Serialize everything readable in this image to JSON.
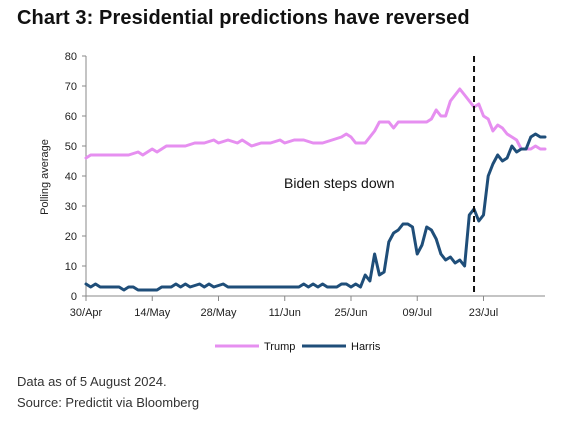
{
  "header": {
    "title": "Chart 3: Presidential predictions have reversed"
  },
  "footer": {
    "note": "Data as of 5 August 2024.",
    "source": "Source: Predictit via Bloomberg"
  },
  "colors": {
    "trump": "#e68ff0",
    "harris": "#1f4e79",
    "axis": "#888888",
    "marker": "#111111"
  },
  "chart_data": {
    "type": "line",
    "title": "Chart 3: Presidential predictions have reversed",
    "ylabel": "Polling average",
    "xlabel": "",
    "ylim": [
      0,
      80
    ],
    "yticks": [
      0,
      10,
      20,
      30,
      40,
      50,
      60,
      70,
      80
    ],
    "x_start": "2024-04-30",
    "x_end": "2024-08-05",
    "xticks": [
      {
        "date": "2024-04-30",
        "label": "30/Apr"
      },
      {
        "date": "2024-05-14",
        "label": "14/May"
      },
      {
        "date": "2024-05-28",
        "label": "28/May"
      },
      {
        "date": "2024-06-11",
        "label": "11/Jun"
      },
      {
        "date": "2024-06-25",
        "label": "25/Jun"
      },
      {
        "date": "2024-07-09",
        "label": "09/Jul"
      },
      {
        "date": "2024-07-23",
        "label": "23/Jul"
      }
    ],
    "grid": false,
    "legend": "bottom-center",
    "annotations": [
      {
        "type": "vline",
        "date": "2024-07-21",
        "text": "Biden steps down"
      }
    ],
    "series": [
      {
        "name": "Trump",
        "color": "#e68ff0",
        "points": [
          [
            "2024-04-30",
            46
          ],
          [
            "2024-05-01",
            47
          ],
          [
            "2024-05-03",
            47
          ],
          [
            "2024-05-05",
            47
          ],
          [
            "2024-05-07",
            47
          ],
          [
            "2024-05-09",
            47
          ],
          [
            "2024-05-11",
            48
          ],
          [
            "2024-05-12",
            47
          ],
          [
            "2024-05-14",
            49
          ],
          [
            "2024-05-15",
            48
          ],
          [
            "2024-05-17",
            50
          ],
          [
            "2024-05-19",
            50
          ],
          [
            "2024-05-21",
            50
          ],
          [
            "2024-05-23",
            51
          ],
          [
            "2024-05-25",
            51
          ],
          [
            "2024-05-27",
            52
          ],
          [
            "2024-05-28",
            51
          ],
          [
            "2024-05-30",
            52
          ],
          [
            "2024-06-01",
            51
          ],
          [
            "2024-06-02",
            52
          ],
          [
            "2024-06-04",
            50
          ],
          [
            "2024-06-06",
            51
          ],
          [
            "2024-06-08",
            51
          ],
          [
            "2024-06-10",
            52
          ],
          [
            "2024-06-11",
            51
          ],
          [
            "2024-06-13",
            52
          ],
          [
            "2024-06-15",
            52
          ],
          [
            "2024-06-17",
            51
          ],
          [
            "2024-06-19",
            51
          ],
          [
            "2024-06-21",
            52
          ],
          [
            "2024-06-23",
            53
          ],
          [
            "2024-06-24",
            54
          ],
          [
            "2024-06-25",
            53
          ],
          [
            "2024-06-26",
            51
          ],
          [
            "2024-06-27",
            51
          ],
          [
            "2024-06-28",
            51
          ],
          [
            "2024-06-29",
            53
          ],
          [
            "2024-06-30",
            55
          ],
          [
            "2024-07-01",
            58
          ],
          [
            "2024-07-02",
            58
          ],
          [
            "2024-07-03",
            58
          ],
          [
            "2024-07-04",
            56
          ],
          [
            "2024-07-05",
            58
          ],
          [
            "2024-07-06",
            58
          ],
          [
            "2024-07-07",
            58
          ],
          [
            "2024-07-08",
            58
          ],
          [
            "2024-07-09",
            58
          ],
          [
            "2024-07-10",
            58
          ],
          [
            "2024-07-11",
            58
          ],
          [
            "2024-07-12",
            59
          ],
          [
            "2024-07-13",
            62
          ],
          [
            "2024-07-14",
            60
          ],
          [
            "2024-07-15",
            60
          ],
          [
            "2024-07-16",
            65
          ],
          [
            "2024-07-17",
            67
          ],
          [
            "2024-07-18",
            69
          ],
          [
            "2024-07-19",
            67
          ],
          [
            "2024-07-20",
            65
          ],
          [
            "2024-07-21",
            63
          ],
          [
            "2024-07-22",
            64
          ],
          [
            "2024-07-23",
            60
          ],
          [
            "2024-07-24",
            59
          ],
          [
            "2024-07-25",
            55
          ],
          [
            "2024-07-26",
            57
          ],
          [
            "2024-07-27",
            56
          ],
          [
            "2024-07-28",
            54
          ],
          [
            "2024-07-29",
            53
          ],
          [
            "2024-07-30",
            52
          ],
          [
            "2024-07-31",
            49
          ],
          [
            "2024-08-01",
            49
          ],
          [
            "2024-08-02",
            49
          ],
          [
            "2024-08-03",
            50
          ],
          [
            "2024-08-04",
            49
          ],
          [
            "2024-08-05",
            49
          ]
        ]
      },
      {
        "name": "Harris",
        "color": "#1f4e79",
        "points": [
          [
            "2024-04-30",
            4
          ],
          [
            "2024-05-01",
            3
          ],
          [
            "2024-05-02",
            4
          ],
          [
            "2024-05-03",
            3
          ],
          [
            "2024-05-05",
            3
          ],
          [
            "2024-05-07",
            3
          ],
          [
            "2024-05-08",
            2
          ],
          [
            "2024-05-09",
            3
          ],
          [
            "2024-05-10",
            3
          ],
          [
            "2024-05-11",
            2
          ],
          [
            "2024-05-13",
            2
          ],
          [
            "2024-05-15",
            2
          ],
          [
            "2024-05-16",
            3
          ],
          [
            "2024-05-18",
            3
          ],
          [
            "2024-05-19",
            4
          ],
          [
            "2024-05-20",
            3
          ],
          [
            "2024-05-21",
            4
          ],
          [
            "2024-05-22",
            3
          ],
          [
            "2024-05-24",
            4
          ],
          [
            "2024-05-25",
            3
          ],
          [
            "2024-05-26",
            4
          ],
          [
            "2024-05-27",
            3
          ],
          [
            "2024-05-29",
            4
          ],
          [
            "2024-05-30",
            3
          ],
          [
            "2024-06-01",
            3
          ],
          [
            "2024-06-03",
            3
          ],
          [
            "2024-06-05",
            3
          ],
          [
            "2024-06-07",
            3
          ],
          [
            "2024-06-09",
            3
          ],
          [
            "2024-06-11",
            3
          ],
          [
            "2024-06-13",
            3
          ],
          [
            "2024-06-14",
            3
          ],
          [
            "2024-06-15",
            4
          ],
          [
            "2024-06-16",
            3
          ],
          [
            "2024-06-17",
            4
          ],
          [
            "2024-06-18",
            3
          ],
          [
            "2024-06-19",
            4
          ],
          [
            "2024-06-20",
            3
          ],
          [
            "2024-06-22",
            3
          ],
          [
            "2024-06-23",
            4
          ],
          [
            "2024-06-24",
            4
          ],
          [
            "2024-06-25",
            3
          ],
          [
            "2024-06-26",
            4
          ],
          [
            "2024-06-27",
            3
          ],
          [
            "2024-06-28",
            7
          ],
          [
            "2024-06-29",
            5
          ],
          [
            "2024-06-30",
            14
          ],
          [
            "2024-07-01",
            7
          ],
          [
            "2024-07-02",
            8
          ],
          [
            "2024-07-03",
            18
          ],
          [
            "2024-07-04",
            21
          ],
          [
            "2024-07-05",
            22
          ],
          [
            "2024-07-06",
            24
          ],
          [
            "2024-07-07",
            24
          ],
          [
            "2024-07-08",
            23
          ],
          [
            "2024-07-09",
            14
          ],
          [
            "2024-07-10",
            17
          ],
          [
            "2024-07-11",
            23
          ],
          [
            "2024-07-12",
            22
          ],
          [
            "2024-07-13",
            19
          ],
          [
            "2024-07-14",
            14
          ],
          [
            "2024-07-15",
            12
          ],
          [
            "2024-07-16",
            13
          ],
          [
            "2024-07-17",
            11
          ],
          [
            "2024-07-18",
            12
          ],
          [
            "2024-07-19",
            10
          ],
          [
            "2024-07-20",
            27
          ],
          [
            "2024-07-21",
            29
          ],
          [
            "2024-07-22",
            25
          ],
          [
            "2024-07-23",
            27
          ],
          [
            "2024-07-24",
            40
          ],
          [
            "2024-07-25",
            44
          ],
          [
            "2024-07-26",
            47
          ],
          [
            "2024-07-27",
            45
          ],
          [
            "2024-07-28",
            46
          ],
          [
            "2024-07-29",
            50
          ],
          [
            "2024-07-30",
            48
          ],
          [
            "2024-07-31",
            49
          ],
          [
            "2024-08-01",
            49
          ],
          [
            "2024-08-02",
            53
          ],
          [
            "2024-08-03",
            54
          ],
          [
            "2024-08-04",
            53
          ],
          [
            "2024-08-05",
            53
          ]
        ]
      }
    ]
  }
}
